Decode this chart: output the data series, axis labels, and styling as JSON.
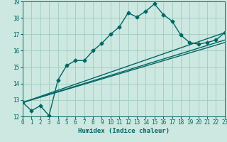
{
  "xlabel": "Humidex (Indice chaleur)",
  "bg_color": "#cce8e0",
  "grid_color": "#a0ccc0",
  "line_color": "#006666",
  "marker": "D",
  "markersize": 2.5,
  "linewidth": 1.0,
  "xlim": [
    0,
    23
  ],
  "ylim": [
    12,
    19
  ],
  "xticks": [
    0,
    1,
    2,
    3,
    4,
    5,
    6,
    7,
    8,
    9,
    10,
    11,
    12,
    13,
    14,
    15,
    16,
    17,
    18,
    19,
    20,
    21,
    22,
    23
  ],
  "yticks": [
    12,
    13,
    14,
    15,
    16,
    17,
    18,
    19
  ],
  "line1_x": [
    0,
    1,
    2,
    3,
    4,
    5,
    6,
    7,
    8,
    9,
    10,
    11,
    12,
    13,
    14,
    15,
    16,
    17,
    18,
    19,
    20,
    21,
    22,
    23
  ],
  "line1_y": [
    12.85,
    12.35,
    12.65,
    12.05,
    14.2,
    15.1,
    15.4,
    15.4,
    16.0,
    16.45,
    17.0,
    17.45,
    18.3,
    18.05,
    18.4,
    18.85,
    18.2,
    17.8,
    16.95,
    16.5,
    16.4,
    16.5,
    16.65,
    17.1
  ],
  "line2_x": [
    0,
    23
  ],
  "line2_y": [
    12.85,
    17.1
  ],
  "line3_x": [
    0,
    23
  ],
  "line3_y": [
    12.85,
    16.65
  ],
  "line4_x": [
    0,
    23
  ],
  "line4_y": [
    12.85,
    16.5
  ],
  "xlabel_fontsize": 6.5,
  "tick_fontsize": 5.5,
  "tick_color": "#006666"
}
